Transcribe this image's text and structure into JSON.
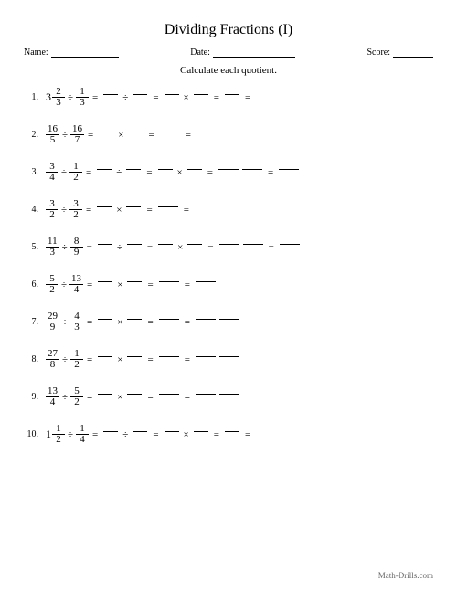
{
  "title": "Dividing Fractions (I)",
  "meta": {
    "name_label": "Name:",
    "date_label": "Date:",
    "score_label": "Score:"
  },
  "instruction": "Calculate each quotient.",
  "footer": "Math-Drills.com",
  "symbols": {
    "div": "÷",
    "mul": "×",
    "eq": "="
  },
  "problems": [
    {
      "n": "1.",
      "lhs": {
        "type": "mixed",
        "w": "3",
        "num": "2",
        "den": "3"
      },
      "rhs": {
        "num": "1",
        "den": "3"
      },
      "steps": [
        "dash",
        "div",
        "dash",
        "eq",
        "dash",
        "mul",
        "dash",
        "eq",
        "dash",
        "eq"
      ]
    },
    {
      "n": "2.",
      "lhs": {
        "type": "frac",
        "num": "16",
        "den": "5"
      },
      "rhs": {
        "num": "16",
        "den": "7"
      },
      "steps": [
        "dash",
        "mul",
        "dash",
        "eq",
        "dashw",
        "eq",
        "dashw",
        "dashw"
      ]
    },
    {
      "n": "3.",
      "lhs": {
        "type": "frac",
        "num": "3",
        "den": "4"
      },
      "rhs": {
        "num": "1",
        "den": "2"
      },
      "steps": [
        "dash",
        "div",
        "dash",
        "eq",
        "dash",
        "mul",
        "dash",
        "eq",
        "dashw",
        "dashw",
        "eq",
        "dashw"
      ]
    },
    {
      "n": "4.",
      "lhs": {
        "type": "frac",
        "num": "3",
        "den": "2"
      },
      "rhs": {
        "num": "3",
        "den": "2"
      },
      "steps": [
        "dash",
        "mul",
        "dash",
        "eq",
        "dashw",
        "eq"
      ]
    },
    {
      "n": "5.",
      "lhs": {
        "type": "frac",
        "num": "11",
        "den": "3"
      },
      "rhs": {
        "num": "8",
        "den": "9"
      },
      "steps": [
        "dash",
        "div",
        "dash",
        "eq",
        "dash",
        "mul",
        "dash",
        "eq",
        "dashw",
        "dashw",
        "eq",
        "dashw"
      ]
    },
    {
      "n": "6.",
      "lhs": {
        "type": "frac",
        "num": "5",
        "den": "2"
      },
      "rhs": {
        "num": "13",
        "den": "4"
      },
      "steps": [
        "dash",
        "mul",
        "dash",
        "eq",
        "dashw",
        "eq",
        "dashw"
      ]
    },
    {
      "n": "7.",
      "lhs": {
        "type": "frac",
        "num": "29",
        "den": "9"
      },
      "rhs": {
        "num": "4",
        "den": "3"
      },
      "steps": [
        "dash",
        "mul",
        "dash",
        "eq",
        "dashw",
        "eq",
        "dashw",
        "dashw"
      ]
    },
    {
      "n": "8.",
      "lhs": {
        "type": "frac",
        "num": "27",
        "den": "8"
      },
      "rhs": {
        "num": "1",
        "den": "2"
      },
      "steps": [
        "dash",
        "mul",
        "dash",
        "eq",
        "dashw",
        "eq",
        "dashw",
        "dashw"
      ]
    },
    {
      "n": "9.",
      "lhs": {
        "type": "frac",
        "num": "13",
        "den": "4"
      },
      "rhs": {
        "num": "5",
        "den": "2"
      },
      "steps": [
        "dash",
        "mul",
        "dash",
        "eq",
        "dashw",
        "eq",
        "dashw",
        "dashw"
      ]
    },
    {
      "n": "10.",
      "lhs": {
        "type": "mixed",
        "w": "1",
        "num": "1",
        "den": "2"
      },
      "rhs": {
        "num": "1",
        "den": "4"
      },
      "steps": [
        "dash",
        "div",
        "dash",
        "eq",
        "dash",
        "mul",
        "dash",
        "eq",
        "dash",
        "eq"
      ]
    }
  ]
}
